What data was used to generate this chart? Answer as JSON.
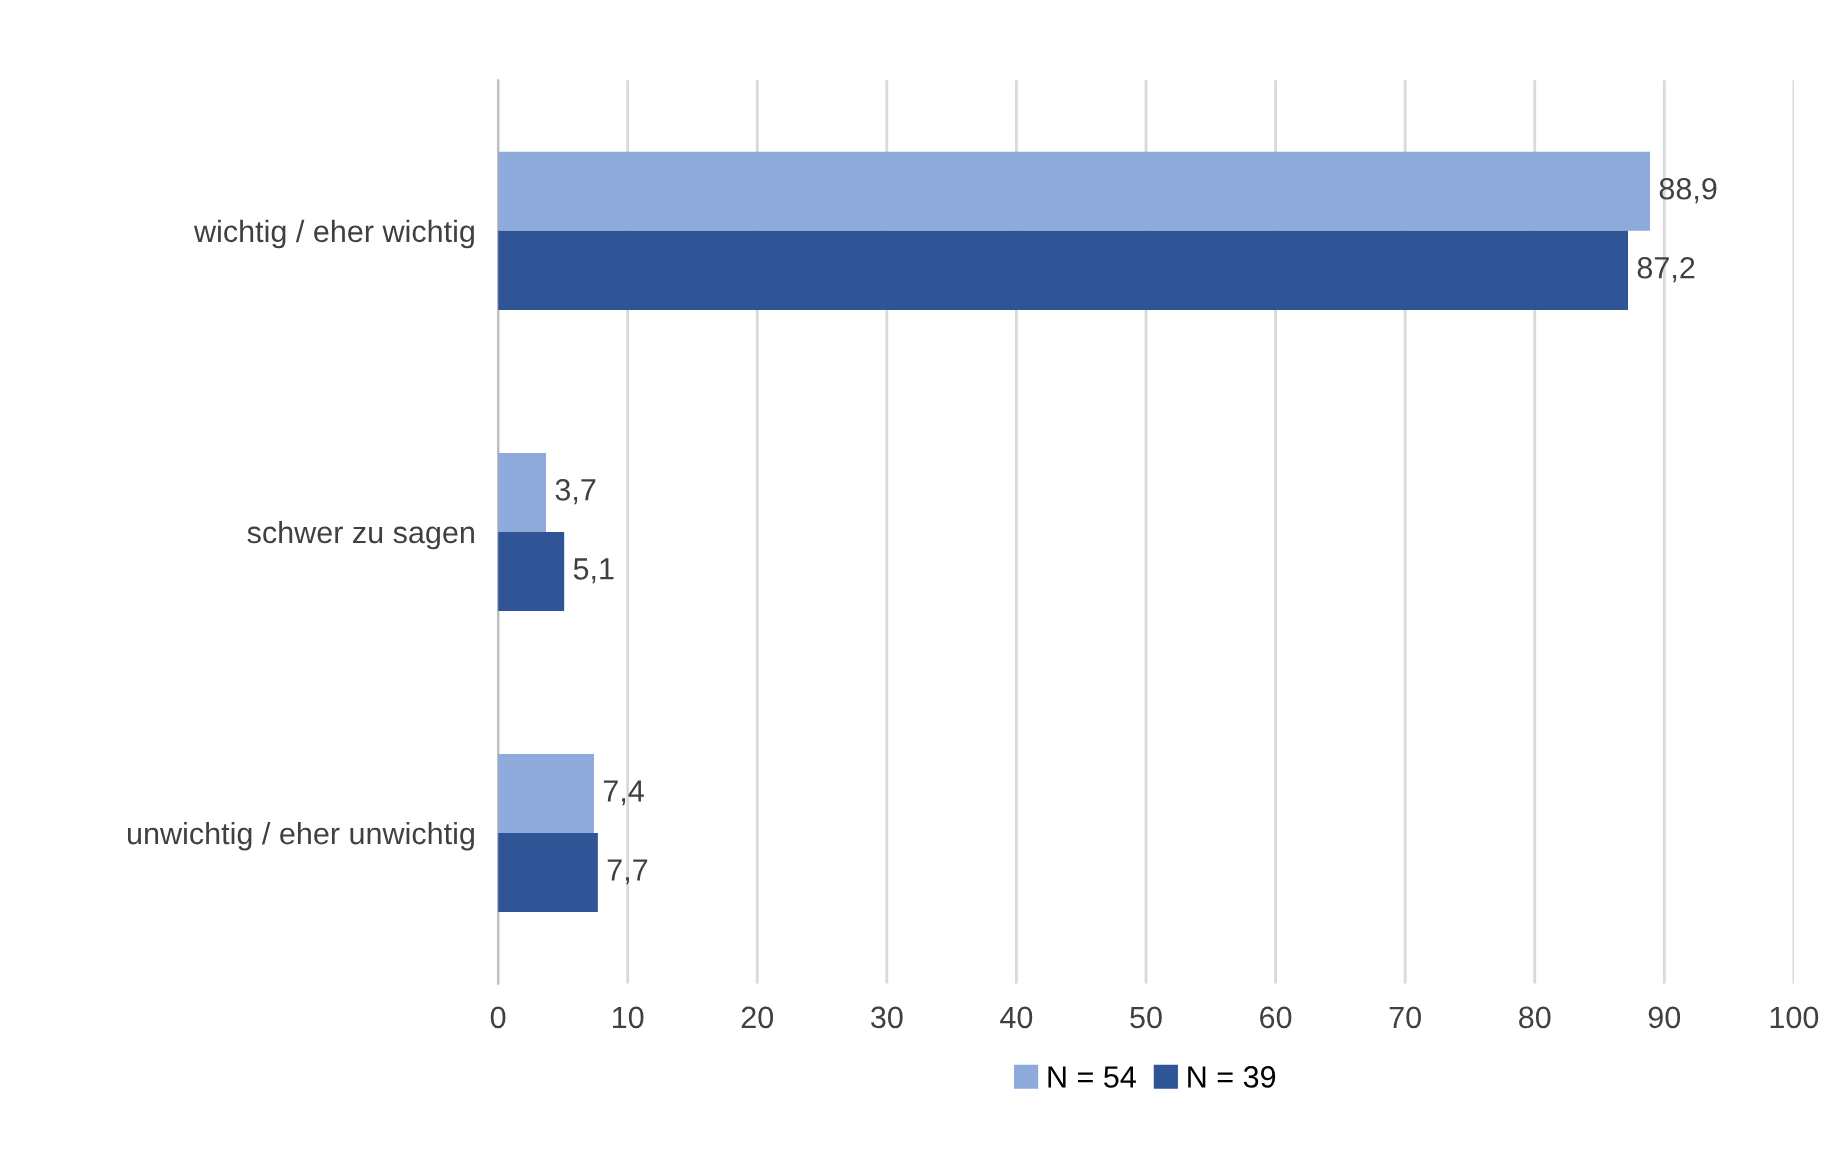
{
  "chart_data": {
    "type": "bar",
    "orientation": "horizontal",
    "categories": [
      "wichtig / eher wichtig",
      "schwer zu sagen",
      "unwichtig / eher unwichtig"
    ],
    "series": [
      {
        "name": "N = 54",
        "color": "#8eaadb",
        "values": [
          88.9,
          3.7,
          7.4
        ],
        "value_labels": [
          "88,9",
          "3,7",
          "7,4"
        ]
      },
      {
        "name": "N = 39",
        "color": "#2f5597",
        "values": [
          87.2,
          5.1,
          7.7
        ],
        "value_labels": [
          "87,2",
          "5,1",
          "7,7"
        ]
      }
    ],
    "xlim": [
      0,
      100
    ],
    "xticks": [
      0,
      10,
      20,
      30,
      40,
      50,
      60,
      70,
      80,
      90,
      100
    ],
    "grid": "x",
    "legend": "bottom"
  }
}
